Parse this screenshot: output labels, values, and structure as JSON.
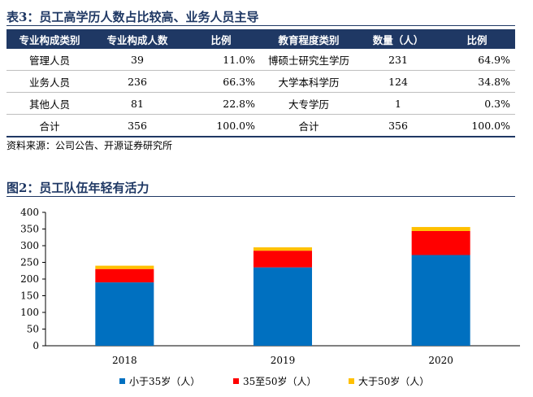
{
  "table_title": "表3：员工高学历人数占比较高、业务人员主导",
  "table": {
    "headers": [
      "专业构成类别",
      "专业构成人数",
      "比例",
      "教育程度类别",
      "数量（人）",
      "比例"
    ],
    "rows": [
      [
        "管理人员",
        "39",
        "11.0%",
        "博硕士研究生学历",
        "231",
        "64.9%"
      ],
      [
        "业务人员",
        "236",
        "66.3%",
        "大学本科学历",
        "124",
        "34.8%"
      ],
      [
        "其他人员",
        "81",
        "22.8%",
        "大专学历",
        "1",
        "0.3%"
      ],
      [
        "合计",
        "356",
        "100.0%",
        "合计",
        "356",
        "100.0%"
      ]
    ]
  },
  "source": "资料来源：公司公告、开源证券研究所",
  "chart_data": {
    "type": "bar",
    "stacked": true,
    "title": "图2：员工队伍年轻有活力",
    "categories": [
      "2018",
      "2019",
      "2020"
    ],
    "series": [
      {
        "name": "小于35岁（人）",
        "color": "#0070c0",
        "values": [
          190,
          235,
          272
        ]
      },
      {
        "name": "35至50岁（人）",
        "color": "#ff0000",
        "values": [
          40,
          50,
          72
        ]
      },
      {
        "name": "大于50岁（人）",
        "color": "#ffc000",
        "values": [
          10,
          10,
          12
        ]
      }
    ],
    "ylim": [
      0,
      400
    ],
    "yticks": [
      "0",
      "50",
      "100",
      "150",
      "200",
      "250",
      "300",
      "350",
      "400"
    ],
    "legend_position": "bottom",
    "grid": false
  }
}
